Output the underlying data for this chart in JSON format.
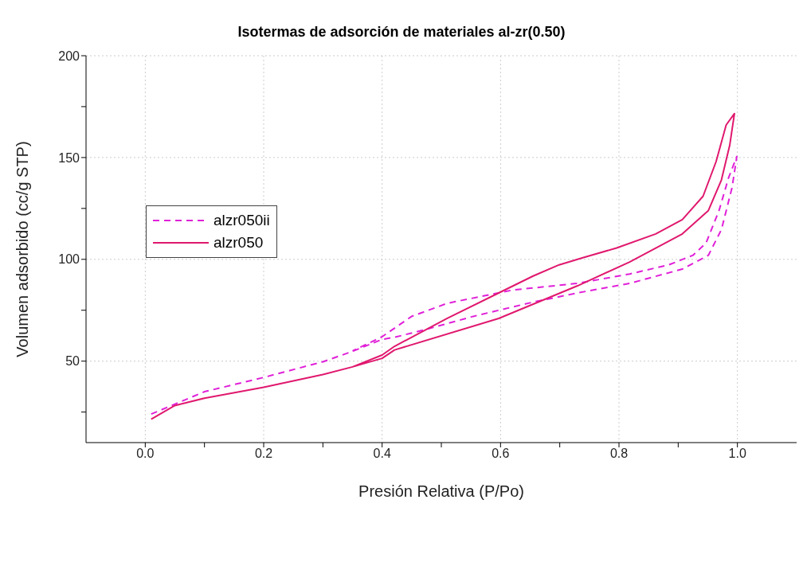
{
  "chart_data": {
    "type": "line",
    "title": "Isotermas de adsorción de materiales al-zr(0.50)",
    "xlabel": "Presión Relativa (P/Po)",
    "ylabel": "Volumen adsorbido (cc/g STP)",
    "xlim": [
      -0.1,
      1.1
    ],
    "ylim": [
      10,
      200
    ],
    "xticks": [
      {
        "value": 0,
        "label": "0.0"
      },
      {
        "value": 0.1,
        "label": null
      },
      {
        "value": 0.2,
        "label": "0.2"
      },
      {
        "value": 0.3,
        "label": null
      },
      {
        "value": 0.4,
        "label": "0.4"
      },
      {
        "value": 0.5,
        "label": null
      },
      {
        "value": 0.6,
        "label": "0.6"
      },
      {
        "value": 0.7,
        "label": null
      },
      {
        "value": 0.8,
        "label": "0.8"
      },
      {
        "value": 0.9,
        "label": null
      },
      {
        "value": 1,
        "label": "1.0"
      }
    ],
    "yticks": [
      {
        "value": 25,
        "label": null
      },
      50,
      {
        "value": 75,
        "label": null
      },
      100,
      {
        "value": 125,
        "label": null
      },
      150,
      {
        "value": 175,
        "label": null
      },
      200
    ],
    "grid": true,
    "legend": "top left",
    "marker": "none",
    "series": [
      {
        "name": "alzr050ii",
        "color": "#e020d8",
        "line_style": "dashed",
        "x": [
          0.01,
          0.1,
          0.2,
          0.3,
          0.35,
          0.4,
          0.421,
          0.478,
          0.554,
          0.655,
          0.73,
          0.818,
          0.907,
          0.951,
          0.973,
          0.991,
          0.999,
          0.985,
          0.969,
          0.947,
          0.925,
          0.884,
          0.818,
          0.73,
          0.62,
          0.51,
          0.45,
          0.4,
          0.35
        ],
        "values": [
          24,
          35,
          42,
          49.7,
          54.8,
          60.7,
          61.7,
          65.9,
          72,
          79,
          83.5,
          88.2,
          95.2,
          102,
          114.6,
          135.3,
          150.5,
          140,
          124,
          108,
          102,
          97.3,
          92.8,
          88.2,
          84.9,
          78.4,
          72,
          62,
          55
        ]
      },
      {
        "name": "alzr050",
        "color": "#e0186e",
        "line_style": "solid",
        "x": [
          0.01,
          0.05,
          0.1,
          0.2,
          0.3,
          0.35,
          0.4,
          0.421,
          0.597,
          0.73,
          0.818,
          0.907,
          0.951,
          0.973,
          0.987,
          0.995,
          0.981,
          0.964,
          0.942,
          0.907,
          0.862,
          0.796,
          0.739,
          0.699,
          0.655,
          0.597,
          0.51,
          0.421,
          0.4,
          0.35
        ],
        "values": [
          21.5,
          28.2,
          31.8,
          37.2,
          43.4,
          47.2,
          51.4,
          55.5,
          71,
          87,
          98.7,
          112.5,
          124,
          139,
          156,
          171.6,
          166,
          148,
          131,
          119.5,
          112.5,
          105.6,
          100.8,
          97.3,
          91.8,
          83.5,
          71,
          57.3,
          53,
          47.2
        ]
      }
    ]
  }
}
